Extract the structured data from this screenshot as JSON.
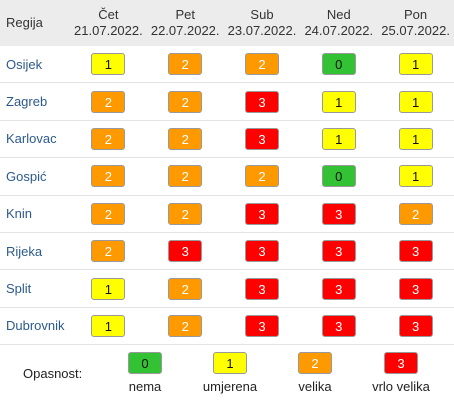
{
  "header": {
    "region": "Regija",
    "days": [
      {
        "name": "Čet",
        "date": "21.07.2022."
      },
      {
        "name": "Pet",
        "date": "22.07.2022."
      },
      {
        "name": "Sub",
        "date": "23.07.2022."
      },
      {
        "name": "Ned",
        "date": "24.07.2022."
      },
      {
        "name": "Pon",
        "date": "25.07.2022."
      }
    ]
  },
  "rows": [
    {
      "region": "Osijek",
      "levels": [
        "1",
        "2",
        "2",
        "0",
        "1"
      ]
    },
    {
      "region": "Zagreb",
      "levels": [
        "2",
        "2",
        "3",
        "1",
        "1"
      ]
    },
    {
      "region": "Karlovac",
      "levels": [
        "2",
        "2",
        "3",
        "1",
        "1"
      ]
    },
    {
      "region": "Gospić",
      "levels": [
        "2",
        "2",
        "2",
        "0",
        "1"
      ]
    },
    {
      "region": "Knin",
      "levels": [
        "2",
        "2",
        "3",
        "3",
        "2"
      ]
    },
    {
      "region": "Rijeka",
      "levels": [
        "2",
        "3",
        "3",
        "3",
        "3"
      ]
    },
    {
      "region": "Split",
      "levels": [
        "1",
        "2",
        "3",
        "3",
        "3"
      ]
    },
    {
      "region": "Dubrovnik",
      "levels": [
        "1",
        "2",
        "3",
        "3",
        "3"
      ]
    }
  ],
  "legend": {
    "label": "Opasnost:",
    "items": [
      {
        "level": "0",
        "desc": "nema"
      },
      {
        "level": "1",
        "desc": "umjerena"
      },
      {
        "level": "2",
        "desc": "velika"
      },
      {
        "level": "3",
        "desc": "vrlo velika"
      }
    ]
  },
  "colors": {
    "level0": "#33c233",
    "level1": "#ffff00",
    "level2": "#ff9900",
    "level3": "#ff0000",
    "region_text": "#2c5a8c",
    "header_bg": "#ececec"
  }
}
